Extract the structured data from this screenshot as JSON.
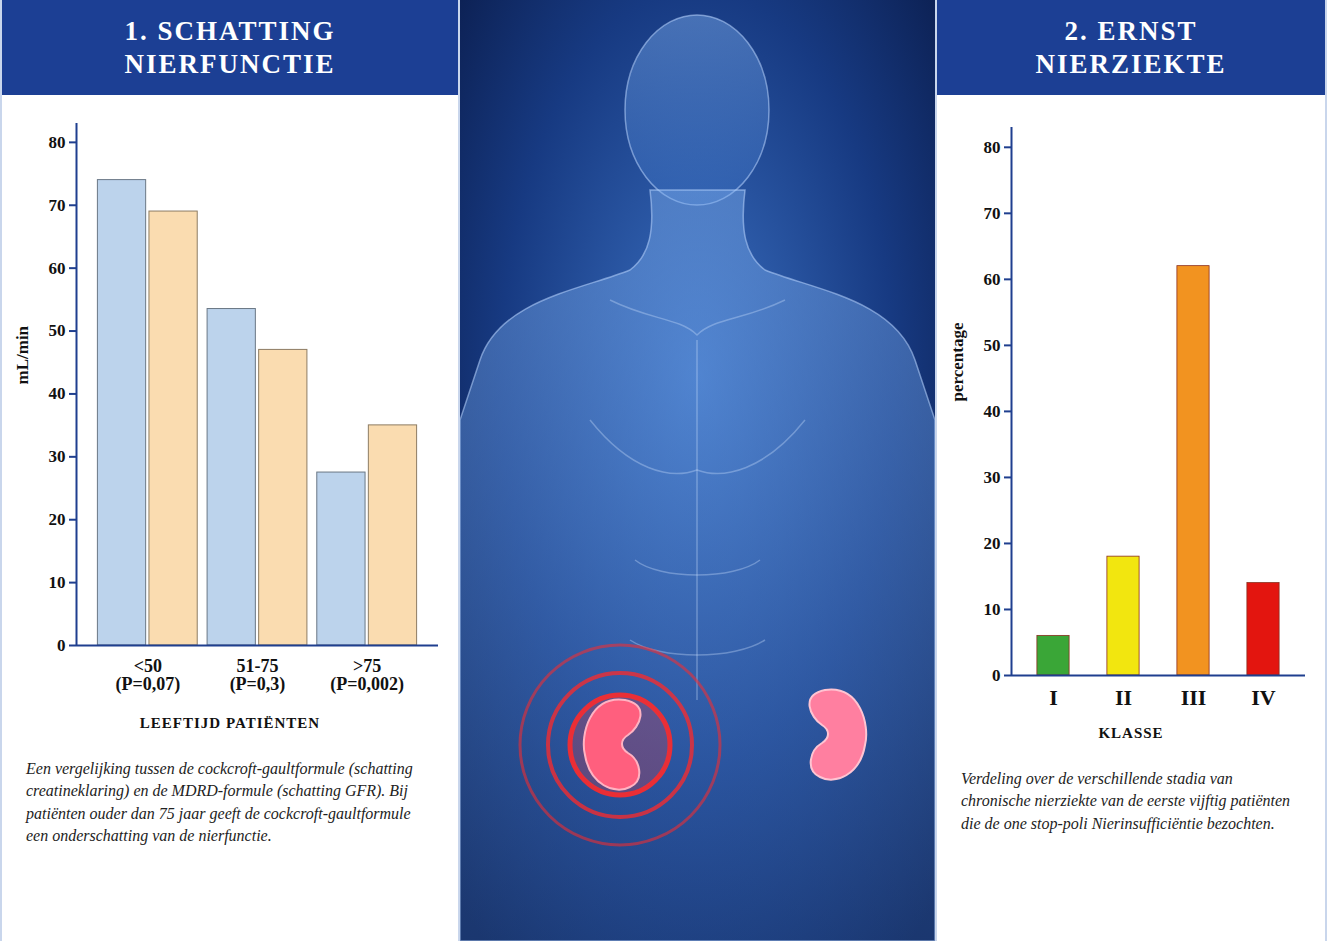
{
  "chart_data": [
    {
      "type": "bar",
      "title": "1. SCHATTING NIERFUNCTIE",
      "categories": [
        "<50",
        "51-75",
        ">75"
      ],
      "category_notes": [
        "(P=0,07)",
        "(P=0,3)",
        "(P=0,002)"
      ],
      "series": [
        {
          "color": "#bcd3ec",
          "values": [
            74,
            53.5,
            27.5
          ]
        },
        {
          "color": "#fadcb0",
          "values": [
            69,
            47,
            35
          ]
        }
      ],
      "ylabel": "mL/min",
      "xlabel": "LEEFTIJD PATIËNTEN",
      "ylim": [
        0,
        83
      ],
      "yticks": [
        0,
        10,
        20,
        30,
        40,
        50,
        60,
        70,
        80
      ],
      "caption": "Een vergelijking tussen de cockcroft-gaultformule (schatting creatineklaring) en de MDRD-formule (schatting GFR). Bij patiënten ouder dan 75 jaar geeft de cockcroft-gaultformule een onderschatting van de nierfunctie."
    },
    {
      "type": "bar",
      "title": "2. ERNST NIERZIEKTE",
      "categories": [
        "I",
        "II",
        "III",
        "IV"
      ],
      "values": [
        6,
        18,
        62,
        14
      ],
      "colors": [
        "#3aa637",
        "#f2e60f",
        "#f29320",
        "#e3150f"
      ],
      "ylabel": "percentage",
      "xlabel": "KLASSE",
      "ylim": [
        0,
        83
      ],
      "yticks": [
        0,
        10,
        20,
        30,
        40,
        50,
        60,
        70,
        80
      ],
      "caption": "Verdeling over de verschillende stadia van chronische nierziekte van de eerste vijftig patiënten die de one stop-poli Nierinsufficiëntie bezochten."
    }
  ]
}
